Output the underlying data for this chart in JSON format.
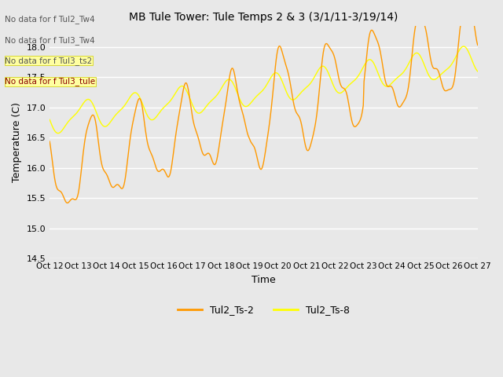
{
  "title": "MB Tule Tower: Tule Temps 2 & 3 (3/1/11-3/19/14)",
  "xlabel": "Time",
  "ylabel": "Temperature (C)",
  "ylim": [
    14.5,
    18.35
  ],
  "xlim": [
    0,
    15
  ],
  "yticks": [
    14.5,
    15.0,
    15.5,
    16.0,
    16.5,
    17.0,
    17.5,
    18.0
  ],
  "xtick_labels": [
    "Oct 12",
    "Oct 13",
    "Oct 14",
    "Oct 15",
    "Oct 16",
    "Oct 17",
    "Oct 18",
    "Oct 19",
    "Oct 20",
    "Oct 21",
    "Oct 22",
    "Oct 23",
    "Oct 24",
    "Oct 25",
    "Oct 26",
    "Oct 27"
  ],
  "color_ts2": "#FF9900",
  "color_ts8": "#FFFF00",
  "legend_labels": [
    "Tul2_Ts-2",
    "Tul2_Ts-8"
  ],
  "no_data_texts": [
    "No data for f Tul2_Tw4",
    "No data for f Tul3_Tw4",
    "No data for f Tul3_ts2",
    "No data for f Tul3_tule"
  ],
  "bg_color": "#E8E8E8",
  "fig_bg_color": "#E8E8E8",
  "plot_bg_color": "#F0F0F0"
}
